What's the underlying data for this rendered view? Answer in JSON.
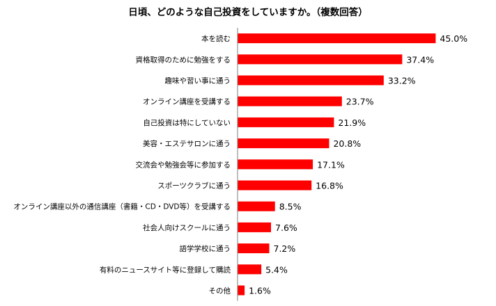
{
  "chart_data": {
    "type": "bar",
    "orientation": "horizontal",
    "title": "日頃、どのような自己投資をしていますか。（複数回答）",
    "categories": [
      "本を読む",
      "資格取得のために勉強をする",
      "趣味や習い事に通う",
      "オンライン講座を受講する",
      "自己投資は特にしていない",
      "美容・エステサロンに通う",
      "交流会や勉強会等に参加する",
      "スポーツクラブに通う",
      "オンライン講座以外の通信講座（書籍・CD・DVD等）を受講する",
      "社会人向けスクールに通う",
      "語学学校に通う",
      "有料のニュースサイト等に登録して購読",
      "その他"
    ],
    "values": [
      45.0,
      37.4,
      33.2,
      23.7,
      21.9,
      20.8,
      17.1,
      16.8,
      8.5,
      7.6,
      7.2,
      5.4,
      1.6
    ],
    "value_labels": [
      "45.0%",
      "37.4%",
      "33.2%",
      "23.7%",
      "21.9%",
      "20.8%",
      "17.1%",
      "16.8%",
      "8.5%",
      "7.6%",
      "7.2%",
      "5.4%",
      "1.6%"
    ],
    "unit": "%",
    "xlim": [
      0,
      50
    ],
    "bar_color": "#ff0000",
    "grid": false,
    "legend": "none"
  }
}
